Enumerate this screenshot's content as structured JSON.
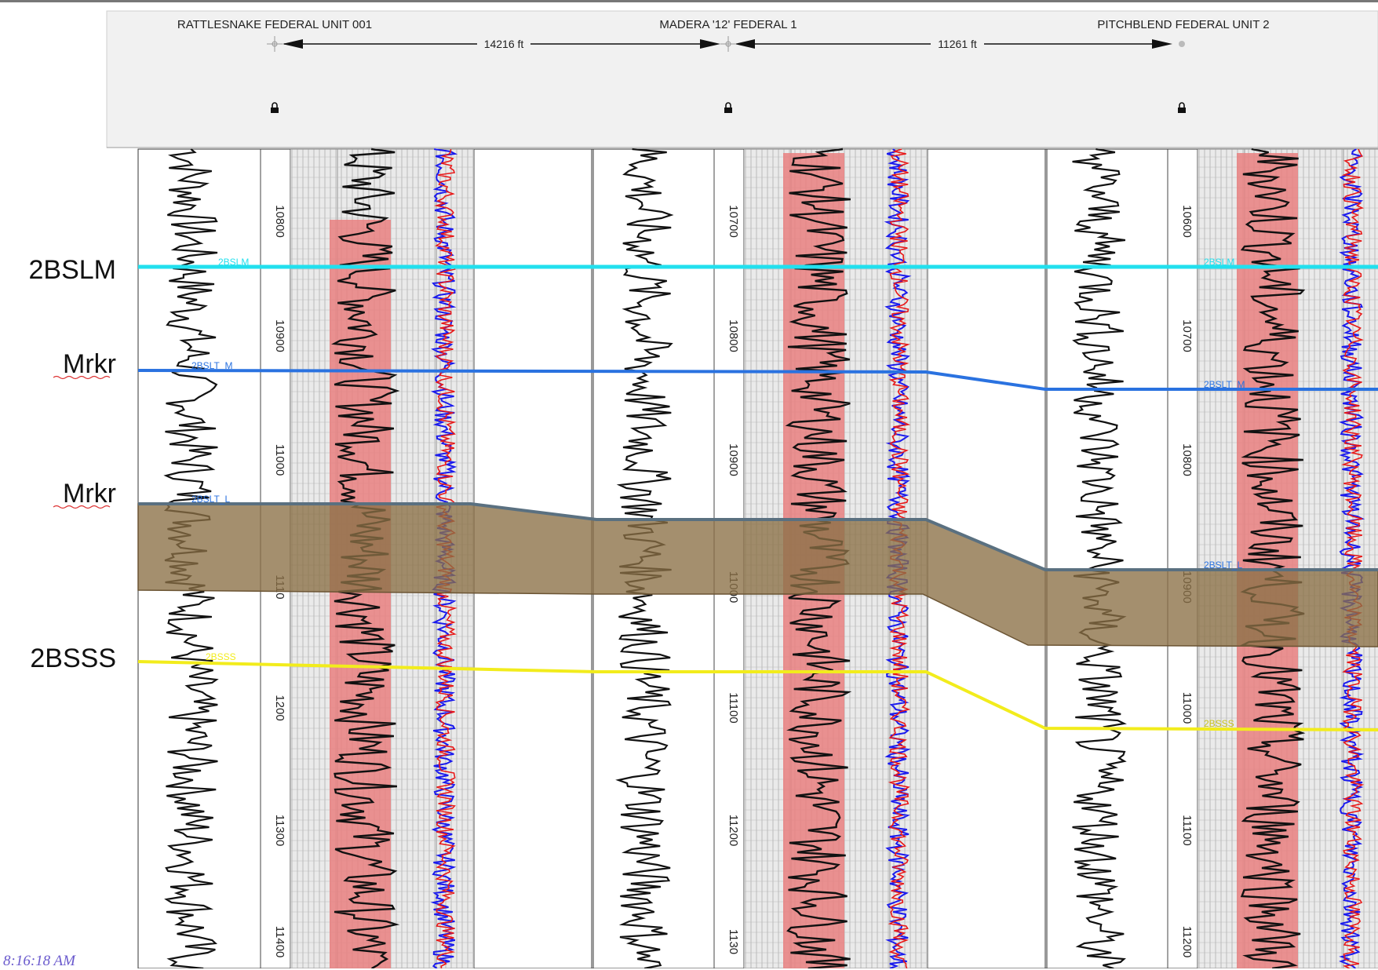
{
  "header": {
    "wells": [
      {
        "name": "RATTLESNAKE FEDERAL UNIT 001"
      },
      {
        "name": "MADERA '12' FEDERAL 1"
      },
      {
        "name": "PITCHBLEND FEDERAL UNIT 2"
      }
    ],
    "distances": [
      "14216 ft",
      "11261 ft"
    ]
  },
  "wells": [
    {
      "depth_labels": [
        "10800",
        "10900",
        "11000",
        "1110",
        "1200",
        "11300",
        "11400"
      ]
    },
    {
      "depth_labels": [
        "10700",
        "10800",
        "10900",
        "11000",
        "11100",
        "11200",
        "1130"
      ]
    },
    {
      "depth_labels": [
        "10600",
        "10700",
        "10800",
        "10900",
        "11000",
        "11100",
        "11200"
      ]
    }
  ],
  "horizons": [
    {
      "label": "2BSLM",
      "color": "#22e0ee",
      "pick_label": "2BSLM"
    },
    {
      "label": "Mrkr",
      "color": "#2a72e0",
      "pick_label": "2BSLT_M"
    },
    {
      "label": "Mrkr",
      "color": "#5a7080",
      "pick_label": "2BSLT_L"
    },
    {
      "label": "2BSSS",
      "color": "#f2ec1c",
      "pick_label": "2BSSS"
    }
  ],
  "zone_fill": "#8b6f45",
  "colors": {
    "sand_fill": "#e98080",
    "curve_blue": "#1a1aee",
    "curve_red": "#e81818"
  },
  "timestamp": "8:16:18 AM"
}
